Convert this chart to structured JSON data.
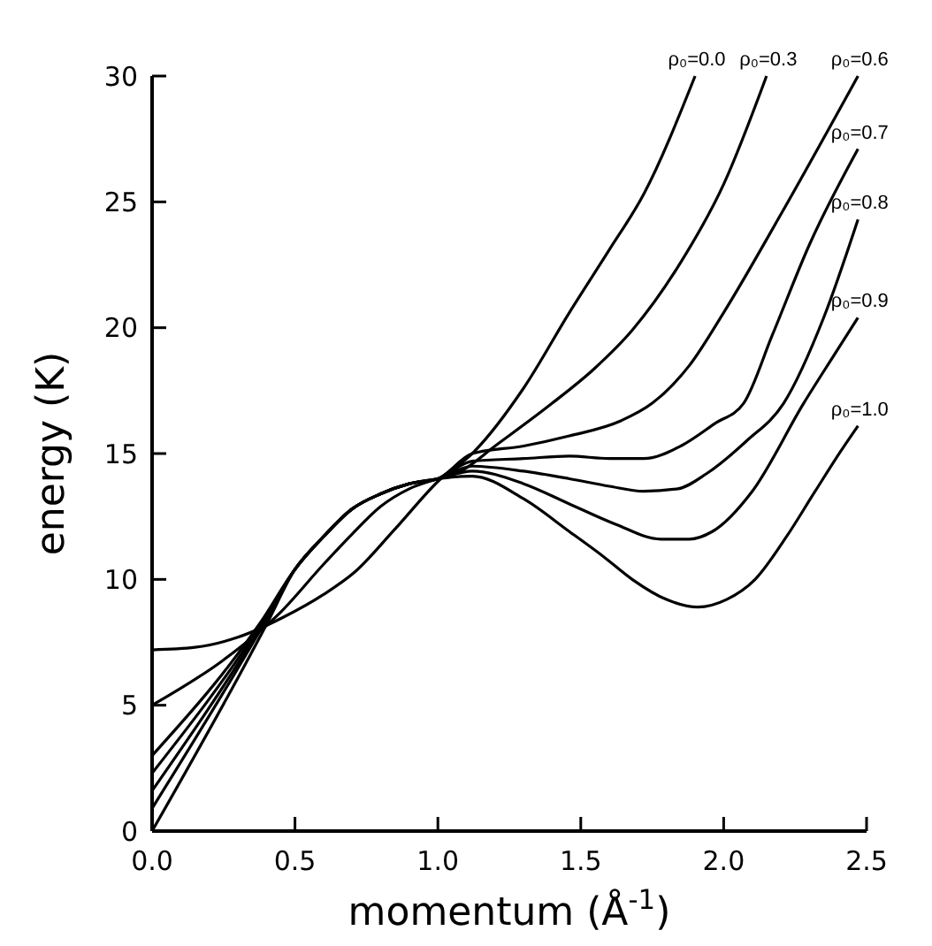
{
  "chart_data": {
    "type": "line",
    "xlabel": "momentum (Å$^{-1}$)",
    "ylabel": "energy (K)",
    "xlim": [
      0,
      2.5
    ],
    "ylim": [
      0,
      30
    ],
    "xticks": [
      {
        "value": 0,
        "label": "0.0"
      },
      {
        "value": 0.5,
        "label": "0.5"
      },
      {
        "value": 1,
        "label": "1.0"
      },
      {
        "value": 1.5,
        "label": "1.5"
      },
      {
        "value": 2,
        "label": "2.0"
      },
      {
        "value": 2.5,
        "label": "2.5"
      }
    ],
    "yticks": [
      0,
      5,
      10,
      15,
      20,
      25,
      30
    ],
    "grid": false,
    "marker": "none",
    "line_style": "solid",
    "series": [
      {
        "name": "ρ₀=0.0",
        "color": "#000000",
        "x": [
          0,
          0.15,
          0.3,
          0.46,
          0.6,
          0.71,
          0.85,
          1.01,
          1.12,
          1.3,
          1.46,
          1.6,
          1.72,
          1.9
        ],
        "values": [
          7.2,
          7.3,
          7.7,
          8.5,
          9.4,
          10.3,
          12.0,
          14.0,
          15.0,
          17.6,
          20.6,
          23.1,
          25.3,
          30.0
        ]
      },
      {
        "name": "ρ₀=0.3",
        "color": "#000000",
        "x": [
          0,
          0.25,
          0.45,
          0.6,
          0.7,
          0.8,
          0.9,
          1.0,
          1.08,
          1.2,
          1.4,
          1.55,
          1.68,
          1.85,
          2.0,
          2.15
        ],
        "values": [
          5.0,
          6.8,
          8.7,
          10.6,
          11.8,
          12.9,
          13.6,
          14.0,
          14.3,
          15.3,
          17.0,
          18.4,
          19.9,
          22.6,
          25.7,
          30.0
        ]
      },
      {
        "name": "ρ₀=0.6",
        "color": "#000000",
        "x": [
          0,
          0.38,
          0.5,
          0.6,
          0.7,
          0.8,
          0.9,
          1.0,
          1.12,
          1.3,
          1.46,
          1.64,
          1.75,
          1.88,
          2.0,
          2.2,
          2.47
        ],
        "values": [
          3.0,
          8.3,
          10.4,
          11.7,
          12.8,
          13.4,
          13.8,
          14.0,
          15.0,
          15.3,
          15.7,
          16.3,
          17.0,
          18.5,
          20.6,
          24.5,
          30.0
        ]
      },
      {
        "name": "ρ₀=0.7",
        "color": "#000000",
        "x": [
          0,
          0.38,
          0.5,
          0.6,
          0.7,
          0.8,
          0.9,
          1.0,
          1.12,
          1.3,
          1.46,
          1.6,
          1.72,
          1.85,
          1.97,
          2.07,
          2.17,
          2.3,
          2.47
        ],
        "values": [
          2.3,
          8.2,
          10.4,
          11.7,
          12.8,
          13.4,
          13.8,
          14.0,
          14.7,
          14.8,
          14.9,
          14.8,
          14.8,
          15.3,
          16.2,
          17.0,
          19.7,
          23.3,
          27.1
        ]
      },
      {
        "name": "ρ₀=0.8",
        "color": "#000000",
        "x": [
          0,
          0.38,
          0.5,
          0.6,
          0.7,
          0.8,
          0.9,
          1.0,
          1.12,
          1.3,
          1.46,
          1.6,
          1.72,
          1.84,
          1.94,
          2.08,
          2.21,
          2.35,
          2.47
        ],
        "values": [
          1.6,
          8.1,
          10.4,
          11.7,
          12.8,
          13.4,
          13.8,
          14.0,
          14.5,
          14.3,
          14.0,
          13.7,
          13.5,
          13.6,
          14.2,
          15.5,
          17.0,
          20.4,
          24.3
        ]
      },
      {
        "name": "ρ₀=0.9",
        "color": "#000000",
        "x": [
          0,
          0.39,
          0.5,
          0.6,
          0.7,
          0.8,
          0.9,
          1.0,
          1.12,
          1.3,
          1.46,
          1.62,
          1.78,
          1.88,
          1.96,
          2.1,
          2.28,
          2.38,
          2.47
        ],
        "values": [
          0.9,
          8.2,
          10.4,
          11.7,
          12.8,
          13.4,
          13.8,
          14.0,
          14.3,
          13.8,
          13.0,
          12.2,
          11.6,
          11.6,
          11.9,
          13.5,
          17.0,
          18.8,
          20.4
        ]
      },
      {
        "name": "ρ₀=1.0",
        "color": "#000000",
        "x": [
          0,
          0.4,
          0.5,
          0.6,
          0.7,
          0.8,
          0.9,
          1.0,
          1.12,
          1.3,
          1.46,
          1.58,
          1.68,
          1.8,
          1.91,
          2.01,
          2.11,
          2.22,
          2.32,
          2.41,
          2.47
        ],
        "values": [
          0.0,
          8.2,
          10.4,
          11.7,
          12.8,
          13.4,
          13.8,
          14.0,
          14.1,
          13.2,
          11.9,
          10.9,
          10.0,
          9.2,
          8.9,
          9.2,
          10.0,
          11.7,
          13.5,
          15.1,
          16.1
        ]
      }
    ]
  }
}
